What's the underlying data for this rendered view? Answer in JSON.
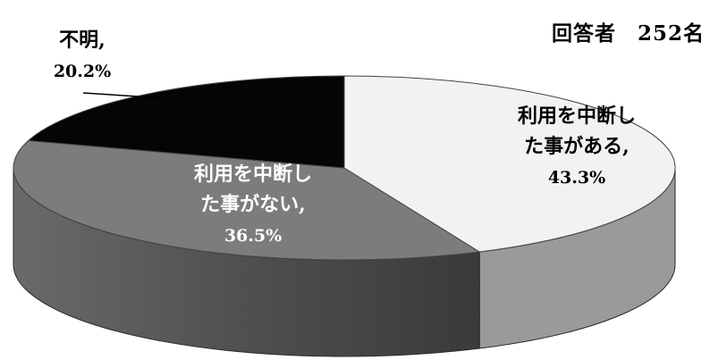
{
  "respondents_label": "回答者　252名",
  "chart_data": {
    "type": "pie",
    "style": "3d",
    "title": "",
    "slices": [
      {
        "line1": "利用を中断し",
        "line2": "た事がある,",
        "value": 43.3,
        "value_label": "43.3%",
        "color": "#f2f2f2",
        "text_color": "#000000"
      },
      {
        "line1": "利用を中断し",
        "line2": "た事がない,",
        "value": 36.5,
        "value_label": "36.5%",
        "color": "#7c7c7c",
        "text_color": "#ffffff"
      },
      {
        "line1": "不明,",
        "line2": "",
        "value": 20.2,
        "value_label": "20.2%",
        "color": "#050505",
        "text_color": "#000000"
      }
    ]
  }
}
